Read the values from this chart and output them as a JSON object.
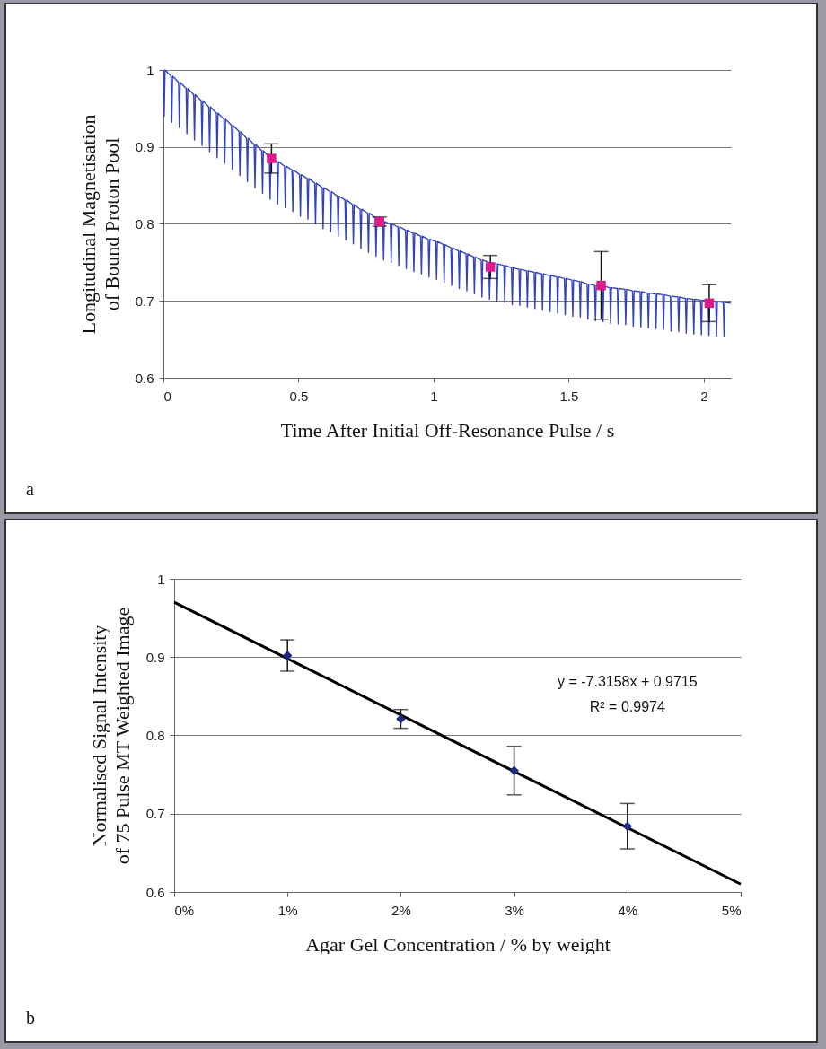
{
  "chart_data": [
    {
      "type": "line",
      "xlabel": "Time After Initial Off-Resonance Pulse / s",
      "ylabel": "Longitudinal Magnetisation of Bound Proton Pool",
      "xlim": [
        0,
        2.1
      ],
      "ylim": [
        0.6,
        1
      ],
      "xticks": [
        0,
        0.5,
        1,
        1.5,
        2
      ],
      "yticks": [
        0.6,
        0.7,
        0.8,
        0.9,
        1
      ],
      "grid": "y",
      "annotations": [
        "a"
      ],
      "series": [
        {
          "color": "#3344bb",
          "marker": "none",
          "line_style": "solid",
          "x": [
            0,
            0.003,
            0.006,
            0.028,
            0.031,
            0.034,
            0.056,
            0.059,
            0.062,
            0.084,
            0.087,
            0.09,
            0.112,
            0.115,
            0.118,
            0.14,
            0.143,
            0.146,
            0.168,
            0.171,
            0.174,
            0.196,
            0.199,
            0.202,
            0.224,
            0.227,
            0.23,
            0.252,
            0.255,
            0.258,
            0.28,
            0.283,
            0.286,
            0.308,
            0.311,
            0.314,
            0.336,
            0.339,
            0.342,
            0.364,
            0.367,
            0.37,
            0.392,
            0.395,
            0.398,
            0.42,
            0.423,
            0.426,
            0.448,
            0.451,
            0.454,
            0.476,
            0.479,
            0.482,
            0.504,
            0.507,
            0.51,
            0.532,
            0.535,
            0.538,
            0.56,
            0.563,
            0.566,
            0.588,
            0.591,
            0.594,
            0.616,
            0.619,
            0.622,
            0.644,
            0.647,
            0.65,
            0.672,
            0.675,
            0.678,
            0.7,
            0.703,
            0.706,
            0.728,
            0.731,
            0.734,
            0.756,
            0.759,
            0.762,
            0.784,
            0.787,
            0.79,
            0.812,
            0.815,
            0.818,
            0.84,
            0.843,
            0.846,
            0.868,
            0.871,
            0.874,
            0.896,
            0.899,
            0.902,
            0.924,
            0.927,
            0.93,
            0.952,
            0.955,
            0.958,
            0.98,
            0.983,
            0.986,
            1.008,
            1.011,
            1.014,
            1.036,
            1.039,
            1.042,
            1.064,
            1.067,
            1.07,
            1.092,
            1.095,
            1.098,
            1.12,
            1.123,
            1.126,
            1.148,
            1.151,
            1.154,
            1.176,
            1.179,
            1.182,
            1.204,
            1.207,
            1.21,
            1.232,
            1.235,
            1.238,
            1.26,
            1.263,
            1.266,
            1.288,
            1.291,
            1.294,
            1.316,
            1.319,
            1.322,
            1.344,
            1.347,
            1.35,
            1.372,
            1.375,
            1.378,
            1.4,
            1.403,
            1.406,
            1.428,
            1.431,
            1.434,
            1.456,
            1.459,
            1.462,
            1.484,
            1.487,
            1.49,
            1.512,
            1.515,
            1.518,
            1.54,
            1.543,
            1.546,
            1.568,
            1.571,
            1.574,
            1.596,
            1.599,
            1.602,
            1.624,
            1.627,
            1.63,
            1.652,
            1.655,
            1.658,
            1.68,
            1.683,
            1.686,
            1.708,
            1.711,
            1.714,
            1.736,
            1.739,
            1.742,
            1.764,
            1.767,
            1.77,
            1.792,
            1.795,
            1.798,
            1.82,
            1.823,
            1.826,
            1.848,
            1.851,
            1.854,
            1.876,
            1.879,
            1.882,
            1.904,
            1.907,
            1.91,
            1.932,
            1.935,
            1.938,
            1.96,
            1.963,
            1.966,
            1.988,
            1.991,
            1.994,
            2.016,
            2.019,
            2.022,
            2.044,
            2.047,
            2.05,
            2.072,
            2.075,
            2.078,
            2.1
          ],
          "values": [
            1,
            0.94,
            1,
            0.992,
            0.932,
            0.992,
            0.984,
            0.925,
            0.984,
            0.976,
            0.917,
            0.976,
            0.968,
            0.909,
            0.968,
            0.96,
            0.902,
            0.96,
            0.952,
            0.894,
            0.952,
            0.944,
            0.886,
            0.944,
            0.936,
            0.879,
            0.936,
            0.928,
            0.871,
            0.928,
            0.92,
            0.863,
            0.92,
            0.911,
            0.855,
            0.911,
            0.903,
            0.847,
            0.903,
            0.895,
            0.84,
            0.895,
            0.887,
            0.832,
            0.887,
            0.881,
            0.826,
            0.881,
            0.875,
            0.821,
            0.875,
            0.87,
            0.816,
            0.87,
            0.864,
            0.81,
            0.864,
            0.859,
            0.806,
            0.859,
            0.853,
            0.8,
            0.853,
            0.847,
            0.794,
            0.847,
            0.842,
            0.79,
            0.842,
            0.836,
            0.784,
            0.836,
            0.831,
            0.779,
            0.831,
            0.825,
            0.774,
            0.825,
            0.819,
            0.768,
            0.819,
            0.814,
            0.763,
            0.814,
            0.808,
            0.758,
            0.808,
            0.803,
            0.753,
            0.803,
            0.8,
            0.75,
            0.8,
            0.796,
            0.746,
            0.796,
            0.792,
            0.742,
            0.792,
            0.788,
            0.738,
            0.788,
            0.784,
            0.735,
            0.784,
            0.78,
            0.731,
            0.78,
            0.777,
            0.728,
            0.777,
            0.773,
            0.724,
            0.773,
            0.769,
            0.72,
            0.769,
            0.765,
            0.716,
            0.765,
            0.761,
            0.713,
            0.761,
            0.757,
            0.709,
            0.757,
            0.753,
            0.705,
            0.753,
            0.75,
            0.702,
            0.75,
            0.748,
            0.7,
            0.748,
            0.746,
            0.698,
            0.746,
            0.743,
            0.695,
            0.743,
            0.741,
            0.694,
            0.741,
            0.739,
            0.692,
            0.739,
            0.737,
            0.69,
            0.737,
            0.735,
            0.688,
            0.735,
            0.733,
            0.686,
            0.733,
            0.731,
            0.684,
            0.731,
            0.729,
            0.682,
            0.729,
            0.727,
            0.68,
            0.727,
            0.725,
            0.679,
            0.725,
            0.722,
            0.676,
            0.722,
            0.72,
            0.674,
            0.72,
            0.719,
            0.673,
            0.719,
            0.717,
            0.671,
            0.717,
            0.716,
            0.67,
            0.716,
            0.715,
            0.669,
            0.715,
            0.713,
            0.667,
            0.713,
            0.712,
            0.666,
            0.712,
            0.71,
            0.665,
            0.71,
            0.709,
            0.664,
            0.709,
            0.708,
            0.663,
            0.708,
            0.706,
            0.661,
            0.706,
            0.705,
            0.66,
            0.705,
            0.703,
            0.658,
            0.703,
            0.702,
            0.657,
            0.702,
            0.701,
            0.656,
            0.701,
            0.7,
            0.655,
            0.7,
            0.699,
            0.654,
            0.699,
            0.698,
            0.653,
            0.698,
            0.697
          ]
        },
        {
          "type": "scatter",
          "color": "#e0198a",
          "marker": "square",
          "x": [
            0.4,
            0.8,
            1.21,
            1.62,
            2.02
          ],
          "values": [
            0.885,
            0.803,
            0.744,
            0.72,
            0.697
          ],
          "errors": [
            0.019,
            0.006,
            0.015,
            0.044,
            0.024
          ]
        }
      ]
    },
    {
      "type": "scatter",
      "xlabel": "Agar Gel Concentration / % by weight",
      "ylabel": "Normalised Signal Intensity of 75 Pulse MT Weighted Image",
      "xlim": [
        0,
        0.05
      ],
      "ylim": [
        0.6,
        1
      ],
      "xticks": [
        {
          "value": 0,
          "label": "0%"
        },
        {
          "value": 0.01,
          "label": "1%"
        },
        {
          "value": 0.02,
          "label": "2%"
        },
        {
          "value": 0.03,
          "label": "3%"
        },
        {
          "value": 0.04,
          "label": "4%"
        },
        {
          "value": 0.05,
          "label": "5%"
        }
      ],
      "yticks": [
        0.6,
        0.7,
        0.8,
        0.9,
        1
      ],
      "grid": "y",
      "annotations": [
        "y = -7.3158x + 0.9715",
        "R² = 0.9974",
        "b"
      ],
      "series": [
        {
          "color": "#1c2a80",
          "marker": "diamond",
          "x": [
            0.01,
            0.02,
            0.03,
            0.04
          ],
          "values": [
            0.902,
            0.821,
            0.755,
            0.684
          ],
          "errors": [
            0.02,
            0.012,
            0.031,
            0.029
          ]
        },
        {
          "type": "line",
          "color": "#000000",
          "marker": "none",
          "line_style": "solid",
          "x": [
            0,
            0.05
          ],
          "values": [
            0.97,
            0.61
          ]
        }
      ]
    }
  ]
}
